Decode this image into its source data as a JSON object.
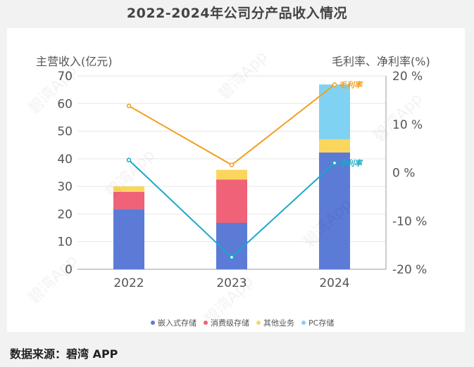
{
  "title": "2022-2024年公司分产品收入情况",
  "source": "数据来源：碧湾 APP",
  "watermark": "碧湾App",
  "colors": {
    "embedded": "#5b7bd6",
    "consumer": "#f06278",
    "other": "#fbd65c",
    "pc": "#80d2f2",
    "gross": "#f0a020",
    "net": "#1aa8c8"
  },
  "chart_data": {
    "type": "bar",
    "stacked": true,
    "categories": [
      "2022",
      "2023",
      "2024"
    ],
    "left_axis": {
      "label": "主营收入(亿元)",
      "ylim": [
        0,
        70
      ],
      "ticks": [
        "0",
        "10",
        "20",
        "30",
        "40",
        "50",
        "60",
        "70"
      ]
    },
    "right_axis": {
      "label": "毛利率、净利率(%)",
      "ylim": [
        -20,
        20
      ],
      "ticks": [
        "-20 %",
        "-10 %",
        "0 %",
        "10 %",
        "20 %"
      ]
    },
    "series": [
      {
        "name": "嵌入式存储",
        "values": [
          21.8,
          16.8,
          42.3
        ]
      },
      {
        "name": "消费级存储",
        "values": [
          6.2,
          15.7,
          0
        ]
      },
      {
        "name": "其他业务",
        "values": [
          2.0,
          3.5,
          4.7
        ]
      },
      {
        "name": "PC存储",
        "values": [
          0,
          0,
          19.9
        ]
      }
    ],
    "lines": [
      {
        "name": "毛利率",
        "label": "毛利率",
        "values": [
          13.8,
          1.6,
          18.2
        ]
      },
      {
        "name": "净利率",
        "label": "净利率",
        "values": [
          2.6,
          -17.5,
          2.0
        ]
      }
    ]
  }
}
